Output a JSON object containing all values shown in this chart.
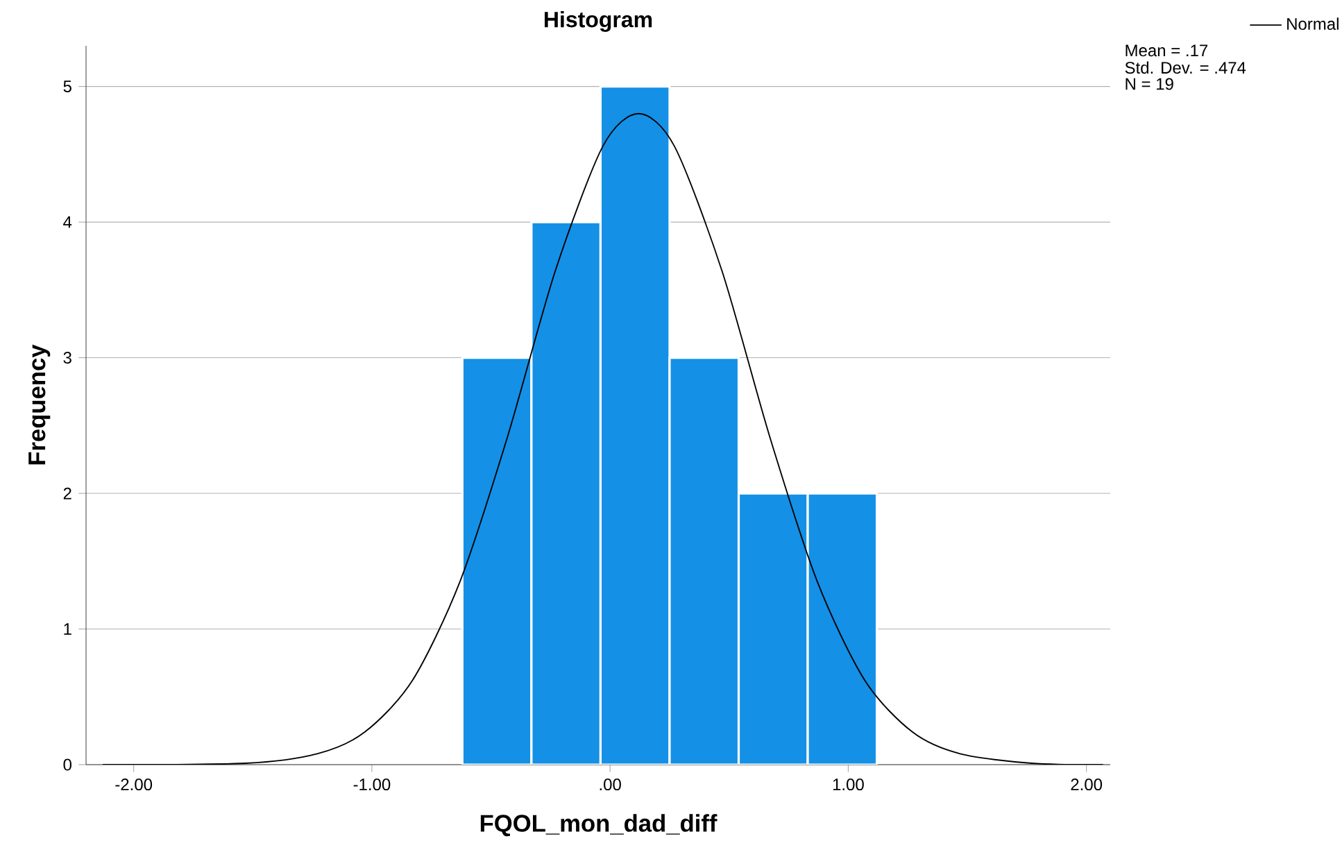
{
  "chart_data": {
    "type": "histogram",
    "title": "Histogram",
    "xlabel": "FQOL_mon_dad_diff",
    "ylabel": "Frequency",
    "xlim": [
      -2.2,
      2.1
    ],
    "ylim": [
      0,
      5.3
    ],
    "xticks": [
      {
        "value": -2,
        "label": "-2.00"
      },
      {
        "value": -1,
        "label": "-1.00"
      },
      {
        "value": 0,
        "label": ".00"
      },
      {
        "value": 1,
        "label": "1.00"
      },
      {
        "value": 2,
        "label": "2.00"
      }
    ],
    "yticks": [
      0,
      1,
      2,
      3,
      4,
      5
    ],
    "grid": "y",
    "legend": "top right",
    "annotations": [
      "Mean = .17",
      "Std. Dev. = .474",
      "N = 19"
    ],
    "series": [
      {
        "color": "#1490e6",
        "bins": [
          -0.62,
          -0.33,
          -0.04,
          0.25,
          0.54,
          0.83,
          1.12
        ],
        "values": [
          3,
          4,
          5,
          3,
          2,
          2
        ]
      },
      {
        "type": "line",
        "name": "Normal",
        "color": "#000000",
        "x": [
          -2.13,
          -1.53,
          -1.23,
          -1.03,
          -0.83,
          -0.63,
          -0.43,
          -0.23,
          -0.03,
          0.12,
          0.27,
          0.47,
          0.67,
          0.87,
          1.07,
          1.27,
          1.47,
          1.77,
          2.07
        ],
        "values": [
          0,
          0.01,
          0.08,
          0.24,
          0.62,
          1.35,
          2.42,
          3.64,
          4.56,
          4.8,
          4.56,
          3.64,
          2.42,
          1.35,
          0.62,
          0.24,
          0.08,
          0.01,
          0
        ]
      }
    ]
  }
}
